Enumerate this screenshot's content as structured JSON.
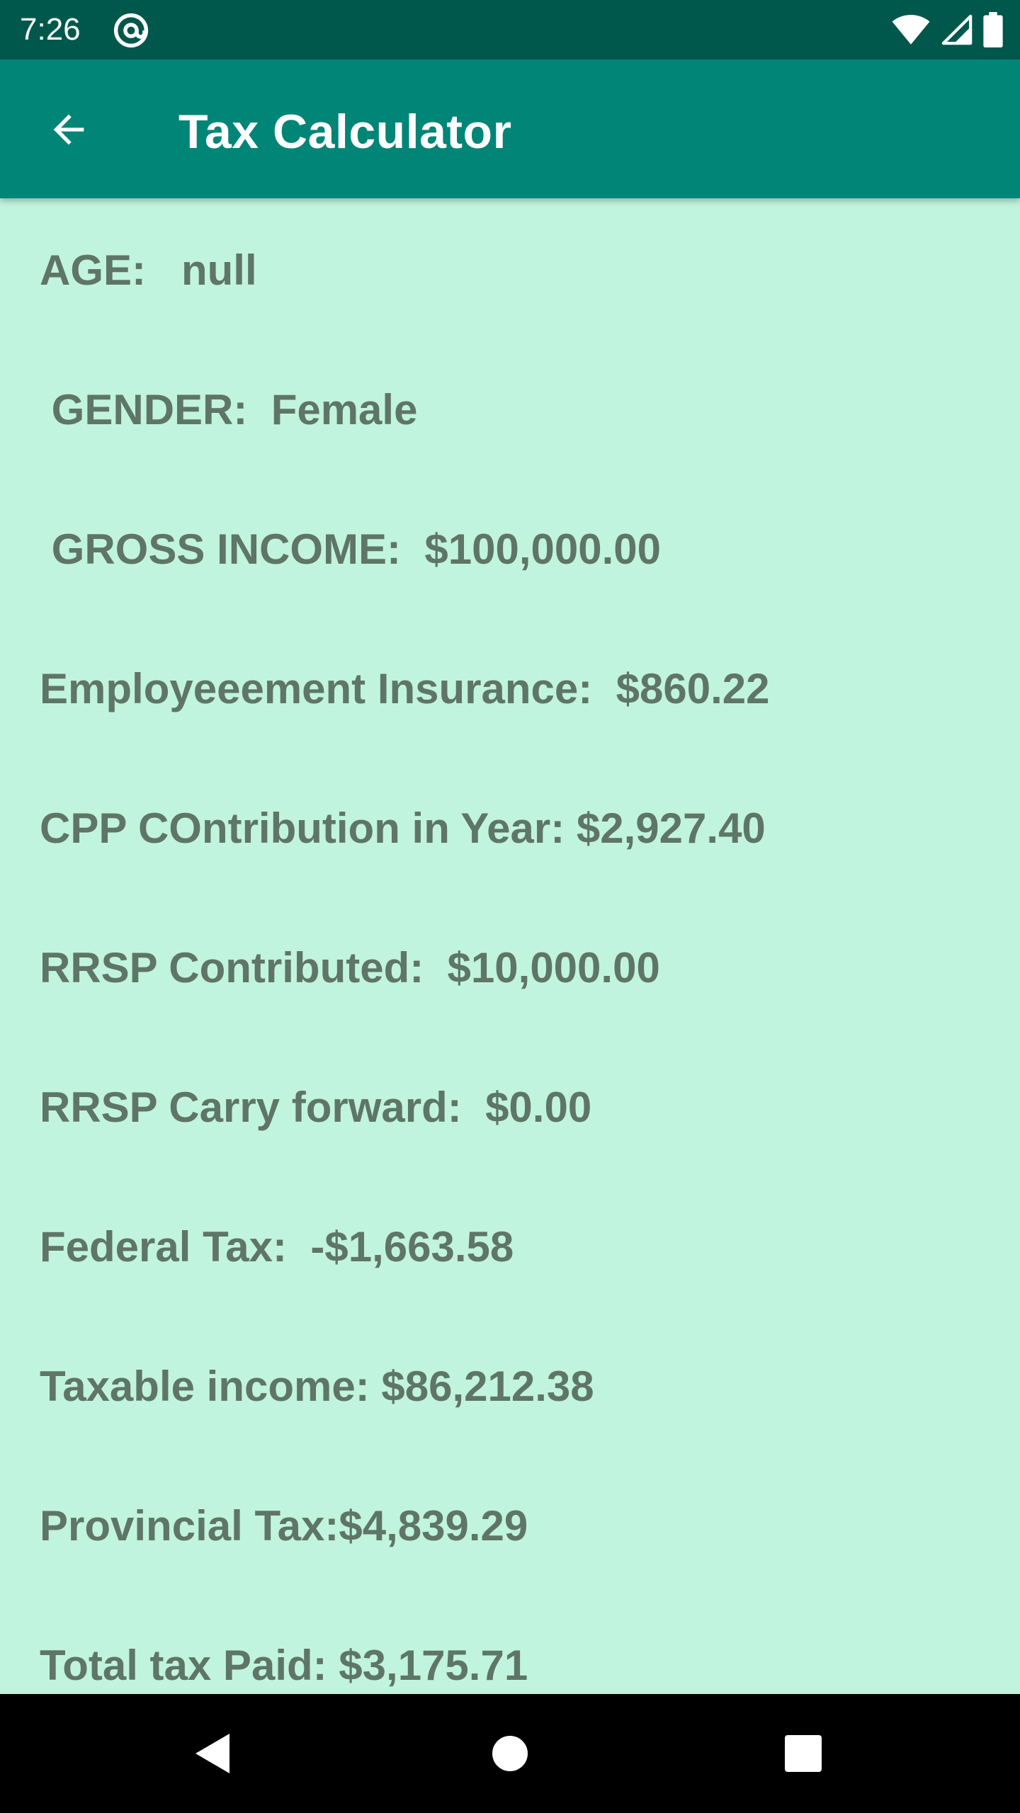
{
  "status_bar": {
    "time": "7:26",
    "icons": [
      "at-sign-icon",
      "wifi-icon",
      "cellular-signal-icon",
      "battery-icon"
    ]
  },
  "app_bar": {
    "back_icon": "arrow-left-icon",
    "title": "Tax Calculator"
  },
  "details": {
    "age": "AGE:   null",
    "gender": " GENDER:  Female",
    "gross_income": " GROSS INCOME:  $100,000.00",
    "employment_insurance": "Employeeement Insurance:  $860.22",
    "cpp_contribution": "CPP COntribution in Year: $2,927.40",
    "rrsp_contributed": "RRSP Contributed:  $10,000.00",
    "rrsp_carry_forward": "RRSP Carry forward:  $0.00",
    "federal_tax": "Federal Tax:  -$1,663.58",
    "taxable_income": "Taxable income: $86,212.38",
    "provincial_tax": "Provincial Tax:$4,839.29",
    "total_tax_paid": "Total tax Paid: $3,175.71"
  },
  "nav_bar": {
    "icons": [
      "nav-back-icon",
      "nav-home-icon",
      "nav-recents-icon"
    ]
  },
  "colors": {
    "status_bar": "#00574B",
    "app_bar": "#008577",
    "background": "#C1F4DE",
    "text": "#5E7567"
  }
}
